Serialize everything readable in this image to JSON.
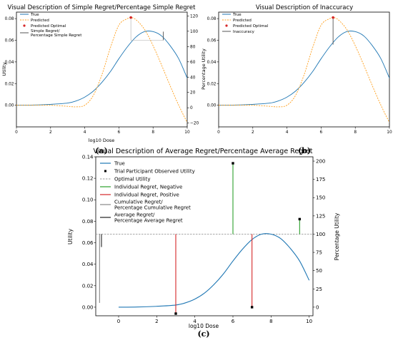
{
  "chart_data": [
    {
      "type": "line",
      "panel_label": "(a)",
      "title": "Visual Description of Simple Regret/Percentage Simple Regret",
      "xlabel": "log10 Dose",
      "ylabel": "Utility",
      "ylabel_right": "Percentage Utility",
      "xlim": [
        0,
        10
      ],
      "ylim": [
        -0.02,
        0.086
      ],
      "ylim_right": [
        -25,
        125
      ],
      "x_ticks": [
        0,
        2,
        4,
        6,
        8,
        10
      ],
      "y_ticks": [
        0.0,
        0.02,
        0.04,
        0.06,
        0.08
      ],
      "y_ticks_right": [
        -20,
        0,
        20,
        40,
        60,
        80,
        100,
        120
      ],
      "x_tick_labels": [
        "0",
        "2",
        "4",
        "6",
        "8",
        "10"
      ],
      "y_tick_labels": [
        "0.00",
        "0.02",
        "0.04",
        "0.06",
        "0.08"
      ],
      "y_tick_labels_right": [
        "−20",
        "0",
        "20",
        "40",
        "60",
        "80",
        "100",
        "120"
      ],
      "legend_position": "top-left",
      "legend": [
        "True",
        "Predicted",
        "Predicted Optimal",
        "Simple Regret/",
        "Percentage Simple Regret"
      ],
      "series": [
        {
          "name": "True",
          "style": "solid",
          "color": "#1f77b4",
          "x": [
            0,
            1,
            2,
            3,
            3.5,
            4,
            4.5,
            5,
            5.5,
            6,
            6.5,
            7,
            7.5,
            8,
            8.5,
            9,
            9.5,
            10
          ],
          "y": [
            0.0,
            0.0002,
            0.0008,
            0.002,
            0.004,
            0.0075,
            0.013,
            0.021,
            0.031,
            0.043,
            0.054,
            0.063,
            0.068,
            0.068,
            0.064,
            0.055,
            0.043,
            0.025
          ]
        },
        {
          "name": "Predicted",
          "style": "dashed",
          "color": "#ff9f1c",
          "x": [
            0,
            1,
            2,
            3,
            3.5,
            4,
            4.5,
            5,
            5.5,
            6,
            6.5,
            6.7,
            7,
            7.5,
            8,
            8.5,
            9,
            9.5,
            10
          ],
          "y": [
            0.0,
            0.0,
            0.0,
            -0.001,
            -0.0015,
            0.0,
            0.009,
            0.028,
            0.053,
            0.074,
            0.08,
            0.081,
            0.079,
            0.07,
            0.055,
            0.037,
            0.018,
            0.0,
            -0.016
          ]
        }
      ],
      "points": [
        {
          "name": "Predicted Optimal",
          "x": 6.7,
          "y": 0.081,
          "color": "#d62728"
        }
      ],
      "regret_lines": [
        {
          "name": "Simple Regret/Percentage Simple Regret",
          "x": 8.6,
          "y0": 0.06,
          "y1": 0.068,
          "color": "#555555"
        }
      ]
    },
    {
      "type": "line",
      "panel_label": "(b)",
      "title": "Visual Description of Inaccuracy",
      "xlabel": "",
      "ylabel": "",
      "xlim": [
        0,
        10
      ],
      "ylim": [
        -0.02,
        0.086
      ],
      "x_ticks": [
        0,
        2,
        4,
        6,
        8,
        10
      ],
      "y_ticks": [
        0.0,
        0.02,
        0.04,
        0.06,
        0.08
      ],
      "x_tick_labels": [
        "0",
        "2",
        "4",
        "6",
        "8",
        "10"
      ],
      "y_tick_labels": [
        "0.00",
        "0.02",
        "0.04",
        "0.06",
        "0.08"
      ],
      "legend_position": "top-left",
      "legend": [
        "True",
        "Predicted",
        "Predicted Optimal",
        "Inaccuracy"
      ],
      "series": [
        {
          "name": "True",
          "style": "solid",
          "color": "#1f77b4",
          "x": [
            0,
            1,
            2,
            3,
            3.5,
            4,
            4.5,
            5,
            5.5,
            6,
            6.5,
            7,
            7.5,
            8,
            8.5,
            9,
            9.5,
            10
          ],
          "y": [
            0.0,
            0.0002,
            0.0008,
            0.002,
            0.004,
            0.0075,
            0.013,
            0.021,
            0.031,
            0.043,
            0.054,
            0.063,
            0.068,
            0.068,
            0.064,
            0.055,
            0.043,
            0.025
          ]
        },
        {
          "name": "Predicted",
          "style": "dashed",
          "color": "#ff9f1c",
          "x": [
            0,
            1,
            2,
            3,
            3.5,
            4,
            4.5,
            5,
            5.5,
            6,
            6.5,
            6.7,
            7,
            7.5,
            8,
            8.5,
            9,
            9.5,
            10
          ],
          "y": [
            0.0,
            0.0,
            0.0,
            -0.001,
            -0.0015,
            0.0,
            0.009,
            0.028,
            0.053,
            0.074,
            0.08,
            0.081,
            0.079,
            0.07,
            0.055,
            0.037,
            0.018,
            0.0,
            -0.016
          ]
        }
      ],
      "points": [
        {
          "name": "Predicted Optimal",
          "x": 6.7,
          "y": 0.081,
          "color": "#d62728"
        }
      ],
      "regret_lines": [
        {
          "name": "Inaccuracy",
          "x": 6.7,
          "y0": 0.056,
          "y1": 0.081,
          "color": "#555555"
        }
      ]
    },
    {
      "type": "line",
      "panel_label": "(c)",
      "title": "Visual Description of Average Regret/Percentage Average Regret",
      "xlabel": "log10 Dose",
      "ylabel": "Utility",
      "ylabel_right": "Percentage Utility",
      "xlim": [
        -1.2,
        10.2
      ],
      "ylim": [
        -0.008,
        0.14
      ],
      "ylim_right": [
        -11.8,
        205.9
      ],
      "x_ticks": [
        0,
        2,
        4,
        6,
        8,
        10
      ],
      "y_ticks": [
        0.0,
        0.02,
        0.04,
        0.06,
        0.08,
        0.1,
        0.12,
        0.14
      ],
      "y_ticks_right": [
        0,
        25,
        50,
        75,
        100,
        125,
        150,
        175,
        200
      ],
      "x_tick_labels": [
        "0",
        "2",
        "4",
        "6",
        "8",
        "10"
      ],
      "y_tick_labels": [
        "0.00",
        "0.02",
        "0.04",
        "0.06",
        "0.08",
        "0.10",
        "0.12",
        "0.14"
      ],
      "y_tick_labels_right": [
        "0",
        "25",
        "50",
        "75",
        "100",
        "125",
        "150",
        "175",
        "200"
      ],
      "legend_position": "top-left",
      "legend": [
        "True",
        "Trial Participant Observed Utility",
        "Optimal Utility",
        "Individual Regret, Negative",
        "Individual Regret, Positive",
        "Cumulative Regret/",
        "Percentage Cumulative Regret",
        "Average Regret/",
        "Percentage Average Regret"
      ],
      "series": [
        {
          "name": "True",
          "style": "solid",
          "color": "#1f77b4",
          "x": [
            0,
            1,
            2,
            3,
            3.5,
            4,
            4.5,
            5,
            5.5,
            6,
            6.5,
            7,
            7.5,
            8,
            8.5,
            9,
            9.5,
            10
          ],
          "y": [
            0.0,
            0.0002,
            0.0008,
            0.002,
            0.004,
            0.0075,
            0.013,
            0.021,
            0.031,
            0.043,
            0.054,
            0.063,
            0.068,
            0.068,
            0.064,
            0.055,
            0.043,
            0.025
          ]
        }
      ],
      "optimal_utility": 0.068,
      "observations": [
        {
          "x": 3,
          "y": -0.006
        },
        {
          "x": 6,
          "y": 0.134
        },
        {
          "x": 7,
          "y": 0.0
        },
        {
          "x": 9.5,
          "y": 0.082
        }
      ],
      "regret_lines": [
        {
          "name": "Individual Regret, Positive",
          "x": 3,
          "y0": -0.006,
          "y1": 0.068,
          "color": "#d62728"
        },
        {
          "name": "Individual Regret, Negative",
          "x": 6,
          "y0": 0.068,
          "y1": 0.134,
          "color": "#2ca02c"
        },
        {
          "name": "Individual Regret, Positive",
          "x": 7,
          "y0": 0.0,
          "y1": 0.068,
          "color": "#d62728"
        },
        {
          "name": "Individual Regret, Negative",
          "x": 9.5,
          "y0": 0.068,
          "y1": 0.082,
          "color": "#2ca02c"
        },
        {
          "name": "Cumulative Regret/Percentage Cumulative Regret",
          "x": -1.0,
          "y0": 0.004,
          "y1": 0.068,
          "color": "#888888"
        },
        {
          "name": "Average Regret/Percentage Average Regret",
          "x": -0.9,
          "y0": 0.056,
          "y1": 0.068,
          "color": "#222222"
        }
      ]
    }
  ]
}
